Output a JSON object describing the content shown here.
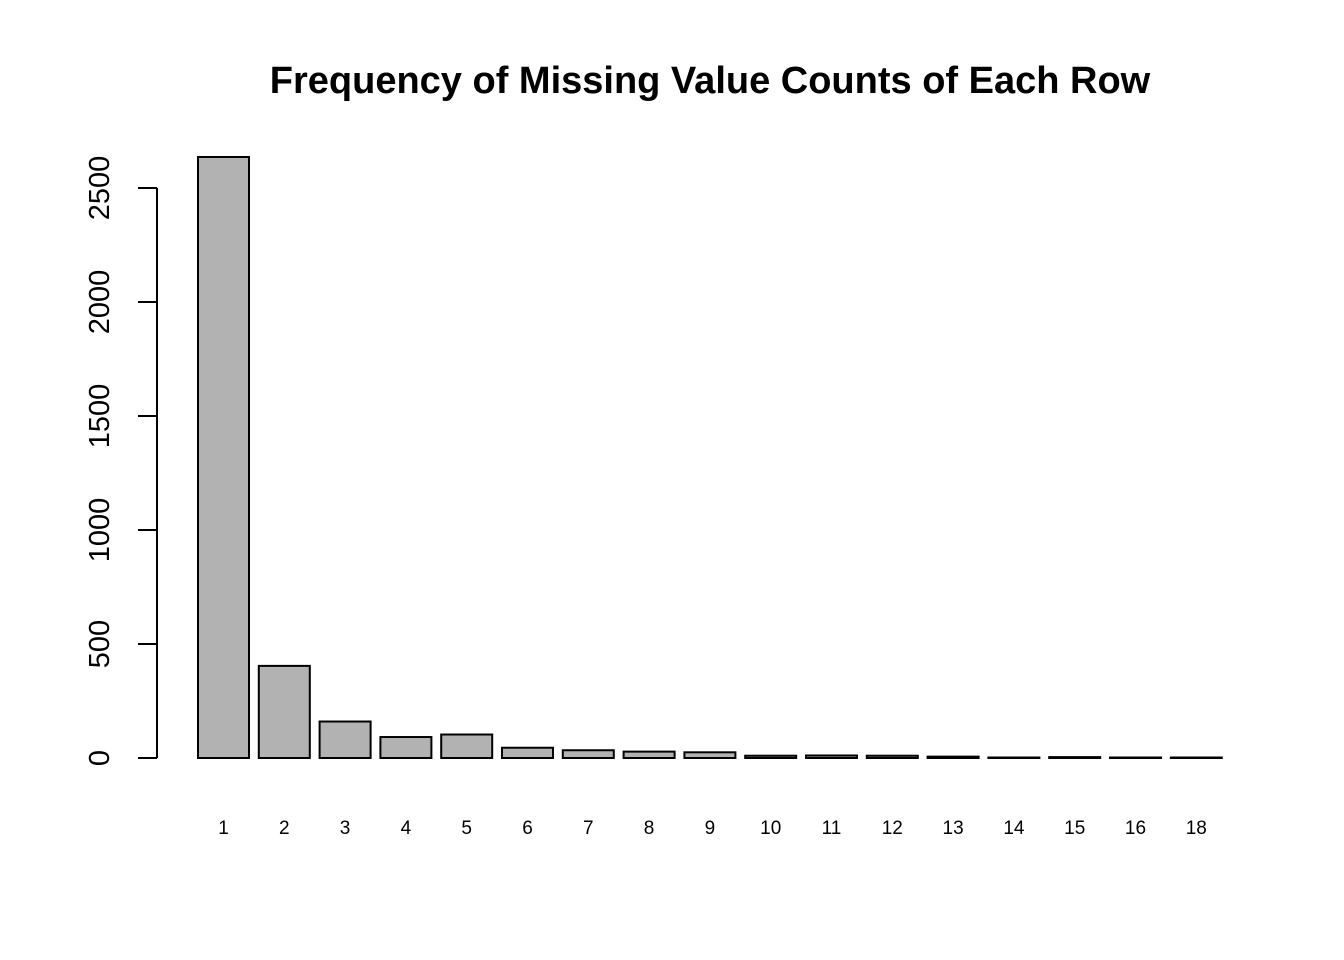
{
  "chart_data": {
    "type": "bar",
    "title": "Frequency of Missing Value Counts of Each Row",
    "xlabel": "",
    "ylabel": "",
    "categories": [
      "1",
      "2",
      "3",
      "4",
      "5",
      "6",
      "7",
      "8",
      "9",
      "10",
      "11",
      "12",
      "13",
      "14",
      "15",
      "16",
      "18"
    ],
    "values": [
      2636,
      404,
      160,
      92,
      103,
      45,
      34,
      28,
      25,
      10,
      11,
      10,
      6,
      2,
      4,
      2,
      2
    ],
    "yticks": [
      0,
      500,
      1000,
      1500,
      2000,
      2500
    ],
    "ylim": [
      0,
      2650
    ],
    "grid": false,
    "colors": {
      "bar_fill": "#b2b2b2",
      "bar_stroke": "#000000",
      "axis": "#000000",
      "text": "#000000"
    }
  }
}
